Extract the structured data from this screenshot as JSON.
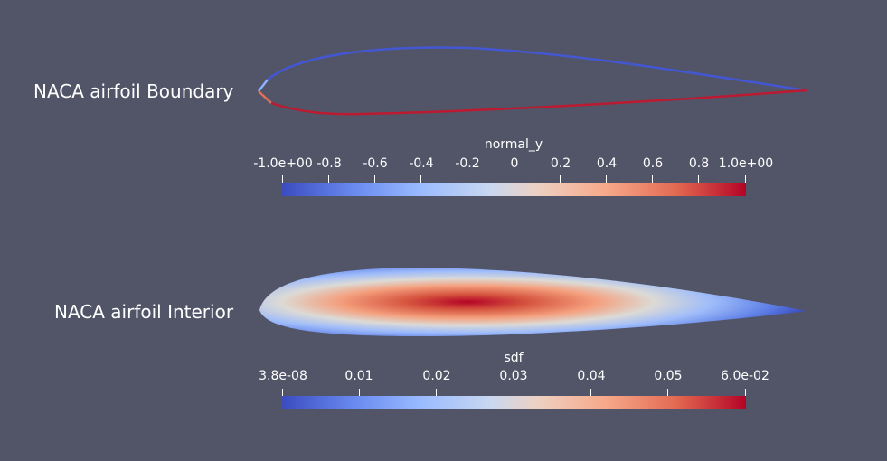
{
  "boundary": {
    "label": "NACA airfoil Boundary",
    "colorbar": {
      "title": "normal_y",
      "ticks": [
        "-1.0e+00",
        "-0.8",
        "-0.6",
        "-0.4",
        "-0.2",
        "0",
        "0.2",
        "0.4",
        "0.6",
        "0.8",
        "1.0e+00"
      ],
      "range": [
        -1.0,
        1.0
      ]
    }
  },
  "interior": {
    "label": "NACA airfoil Interior",
    "colorbar": {
      "title": "sdf",
      "ticks": [
        "3.8e-08",
        "0.01",
        "0.02",
        "0.03",
        "0.04",
        "0.05",
        "6.0e-02"
      ],
      "range": [
        3.8e-08,
        0.06
      ]
    }
  },
  "colors": {
    "background": "#525568",
    "colormap_low": "#3b4cc0",
    "colormap_mid": "#dddddd",
    "colormap_high": "#b40426"
  }
}
